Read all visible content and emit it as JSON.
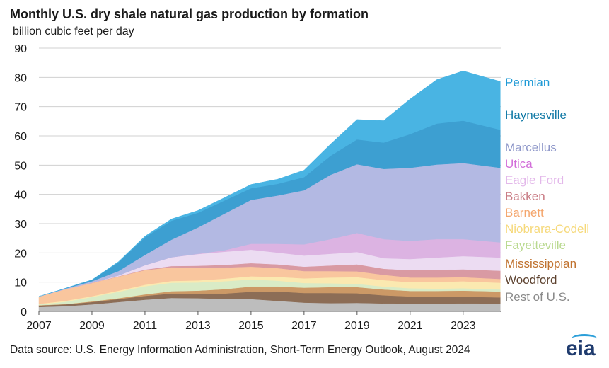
{
  "title": "Monthly U.S. dry shale natural gas production by formation",
  "unit": "billion  cubic  feet per day",
  "source": "Data source: U.S. Energy Information Administration,  Short-Term Energy Outlook, August 2024",
  "logo": "eia",
  "chart_data": {
    "type": "area",
    "stacked": true,
    "title": "Monthly U.S. dry shale natural gas production by formation",
    "ylabel": "billion cubic feet per day",
    "ylim": [
      0,
      90
    ],
    "yticks": [
      0,
      10,
      20,
      30,
      40,
      50,
      60,
      70,
      80,
      90
    ],
    "xlim": [
      2007.0,
      2024.42
    ],
    "xticks": [
      2007,
      2009,
      2011,
      2013,
      2015,
      2017,
      2019,
      2021,
      2023
    ],
    "grid": true,
    "legend_position": "right",
    "x": [
      2007,
      2008,
      2009,
      2010,
      2011,
      2012,
      2013,
      2014,
      2015,
      2016,
      2017,
      2018,
      2019,
      2020,
      2021,
      2022,
      2023,
      2024.4
    ],
    "series": [
      {
        "name": "Rest of U.S.",
        "color": "#bdbdbd",
        "values": [
          1.5,
          1.8,
          2.4,
          3.2,
          4.0,
          4.6,
          4.5,
          4.3,
          4.2,
          3.6,
          3.0,
          2.8,
          2.9,
          2.7,
          2.6,
          2.6,
          2.7,
          2.6
        ]
      },
      {
        "name": "Woodford",
        "color": "#8c6d56",
        "values": [
          0.5,
          0.6,
          0.8,
          1.0,
          1.3,
          1.5,
          1.6,
          1.8,
          2.5,
          3.2,
          3.3,
          3.5,
          3.3,
          2.8,
          2.5,
          2.4,
          2.3,
          2.2
        ]
      },
      {
        "name": "Mississippian",
        "color": "#cc9966",
        "values": [
          0.1,
          0.1,
          0.2,
          0.3,
          0.5,
          0.8,
          1.0,
          1.5,
          1.8,
          1.7,
          1.8,
          2.0,
          2.1,
          2.0,
          1.9,
          2.0,
          2.1,
          2.0
        ]
      },
      {
        "name": "Fayetteville",
        "color": "#d9ebc6",
        "values": [
          0.3,
          0.8,
          1.5,
          2.2,
          2.8,
          2.9,
          2.8,
          2.7,
          2.4,
          2.0,
          1.6,
          1.3,
          1.1,
          1.0,
          0.9,
          0.8,
          0.8,
          0.7
        ]
      },
      {
        "name": "Niobrara-Codell",
        "color": "#fbe9b0",
        "values": [
          0.2,
          0.3,
          0.3,
          0.4,
          0.5,
          0.6,
          0.7,
          0.9,
          1.1,
          1.3,
          1.6,
          2.0,
          2.3,
          2.2,
          2.1,
          2.3,
          2.4,
          2.3
        ]
      },
      {
        "name": "Barnett",
        "color": "#f9c69e",
        "values": [
          2.5,
          4.0,
          4.5,
          4.8,
          5.0,
          4.7,
          4.4,
          3.8,
          3.3,
          3.0,
          2.5,
          2.2,
          2.0,
          1.8,
          1.6,
          1.5,
          1.4,
          1.3
        ]
      },
      {
        "name": "Bakken",
        "color": "#d99aa3",
        "values": [
          0.0,
          0.0,
          0.1,
          0.1,
          0.2,
          0.4,
          0.6,
          0.9,
          1.2,
          1.3,
          1.5,
          1.9,
          2.4,
          2.1,
          2.5,
          2.6,
          2.7,
          2.8
        ]
      },
      {
        "name": "Eagle Ford",
        "color": "#ecdcf2",
        "values": [
          0.0,
          0.0,
          0.0,
          0.3,
          1.5,
          3.0,
          4.0,
          4.5,
          4.6,
          4.0,
          3.8,
          4.0,
          4.2,
          3.6,
          3.8,
          4.2,
          4.5,
          4.5
        ]
      },
      {
        "name": "Utica",
        "color": "#dcb3e2",
        "values": [
          0.0,
          0.0,
          0.0,
          0.0,
          0.0,
          0.0,
          0.1,
          0.5,
          2.0,
          3.0,
          3.8,
          5.0,
          6.5,
          6.5,
          6.2,
          6.3,
          5.8,
          5.2
        ]
      },
      {
        "name": "Marcellus",
        "color": "#b3b9e3",
        "values": [
          0.0,
          0.2,
          0.5,
          1.5,
          3.5,
          6.0,
          9.0,
          12.5,
          15.0,
          16.5,
          18.5,
          22.0,
          23.5,
          24.0,
          25.0,
          25.5,
          26.0,
          25.5
        ]
      },
      {
        "name": "Haynesville",
        "color": "#3d9fd1",
        "values": [
          0.0,
          0.1,
          0.5,
          3.0,
          6.0,
          6.5,
          5.0,
          4.5,
          4.0,
          4.0,
          4.5,
          6.5,
          8.5,
          9.0,
          11.5,
          14.0,
          14.5,
          13.0
        ]
      },
      {
        "name": "Permian",
        "color": "#49b4e3",
        "values": [
          0.0,
          0.0,
          0.0,
          0.2,
          0.4,
          0.6,
          0.8,
          1.0,
          1.3,
          1.6,
          2.4,
          4.0,
          6.8,
          7.5,
          12.0,
          15.0,
          17.0,
          16.5
        ]
      }
    ],
    "legend_order": [
      "Permian",
      "Haynesville",
      "Marcellus",
      "Utica",
      "Eagle Ford",
      "Bakken",
      "Barnett",
      "Niobrara-Codell",
      "Fayetteville",
      "Mississippian",
      "Woodford",
      "Rest of U.S."
    ],
    "legend_colors": {
      "Permian": "#1f9ad6",
      "Haynesville": "#127aa6",
      "Marcellus": "#8e97c9",
      "Utica": "#d26ed9",
      "Eagle Ford": "#e3b8ea",
      "Bakken": "#c97b84",
      "Barnett": "#f4a66d",
      "Niobrara-Codell": "#f6d97a",
      "Fayetteville": "#b9d98f",
      "Mississippian": "#c0722f",
      "Woodford": "#5e4330",
      "Rest of U.S.": "#8a8a8a"
    }
  }
}
